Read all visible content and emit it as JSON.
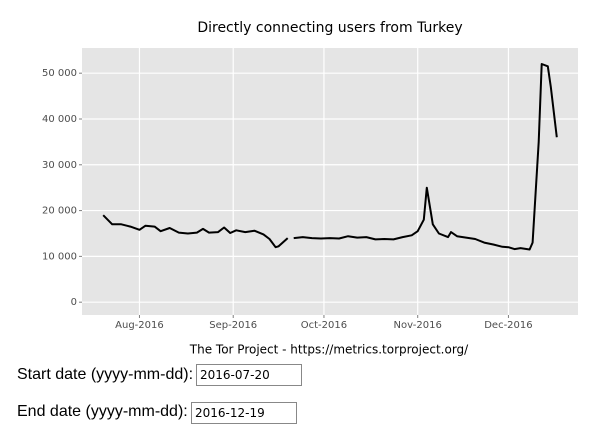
{
  "chart_data": {
    "type": "line",
    "title": "Directly connecting users from Turkey",
    "caption": "The Tor Project - https://metrics.torproject.org/",
    "x": [
      "2016-07-20",
      "2016-07-23",
      "2016-07-26",
      "2016-07-29",
      "2016-08-01",
      "2016-08-03",
      "2016-08-06",
      "2016-08-08",
      "2016-08-11",
      "2016-08-14",
      "2016-08-17",
      "2016-08-20",
      "2016-08-22",
      "2016-08-24",
      "2016-08-27",
      "2016-08-29",
      "2016-08-31",
      "2016-09-02",
      "2016-09-05",
      "2016-09-08",
      "2016-09-11",
      "2016-09-13",
      "2016-09-15",
      "2016-09-16",
      "2016-09-19",
      "2016-09-20",
      "2016-09-21",
      "2016-09-24",
      "2016-09-27",
      "2016-09-30",
      "2016-10-03",
      "2016-10-06",
      "2016-10-09",
      "2016-10-12",
      "2016-10-15",
      "2016-10-18",
      "2016-10-21",
      "2016-10-24",
      "2016-10-27",
      "2016-10-30",
      "2016-11-01",
      "2016-11-03",
      "2016-11-04",
      "2016-11-06",
      "2016-11-08",
      "2016-11-11",
      "2016-11-12",
      "2016-11-14",
      "2016-11-17",
      "2016-11-20",
      "2016-11-23",
      "2016-11-26",
      "2016-11-29",
      "2016-12-01",
      "2016-12-03",
      "2016-12-05",
      "2016-12-08",
      "2016-12-09",
      "2016-12-11",
      "2016-12-12",
      "2016-12-14",
      "2016-12-15",
      "2016-12-17"
    ],
    "series": [
      {
        "name": "users",
        "color": "#000000",
        "values": [
          19000,
          17000,
          17000,
          16500,
          15800,
          16700,
          16500,
          15500,
          16200,
          15200,
          15000,
          15200,
          16000,
          15200,
          15300,
          16300,
          15100,
          15700,
          15300,
          15600,
          14800,
          13800,
          12000,
          12200,
          14000,
          null,
          14000,
          14200,
          14000,
          13900,
          14000,
          13900,
          14400,
          14100,
          14200,
          13700,
          13800,
          13700,
          14200,
          14600,
          15500,
          18000,
          25000,
          17000,
          15000,
          14200,
          15300,
          14400,
          14100,
          13800,
          13000,
          12600,
          12100,
          12000,
          11600,
          11800,
          11500,
          13000,
          35000,
          52000,
          51500,
          47000,
          36000
        ]
      }
    ],
    "xlim": [
      "2016-07-13",
      "2016-12-24"
    ],
    "xticks": [
      {
        "value": "2016-08-01",
        "label": "Aug-2016"
      },
      {
        "value": "2016-09-01",
        "label": "Sep-2016"
      },
      {
        "value": "2016-10-01",
        "label": "Oct-2016"
      },
      {
        "value": "2016-11-01",
        "label": "Nov-2016"
      },
      {
        "value": "2016-12-01",
        "label": "Dec-2016"
      }
    ],
    "ylim": [
      -2800,
      55500
    ],
    "yticks": [
      0,
      {
        "value": 10000,
        "label": "10 000"
      },
      {
        "value": 20000,
        "label": "20 000"
      },
      {
        "value": 30000,
        "label": "30 000"
      },
      {
        "value": 40000,
        "label": "40 000"
      },
      {
        "value": 50000,
        "label": "50 000"
      }
    ],
    "grid": true
  },
  "form": {
    "start_label": "Start date (yyyy-mm-dd):",
    "start_value": "2016-07-20",
    "end_label": "End date (yyyy-mm-dd):",
    "end_value": "2016-12-19"
  }
}
